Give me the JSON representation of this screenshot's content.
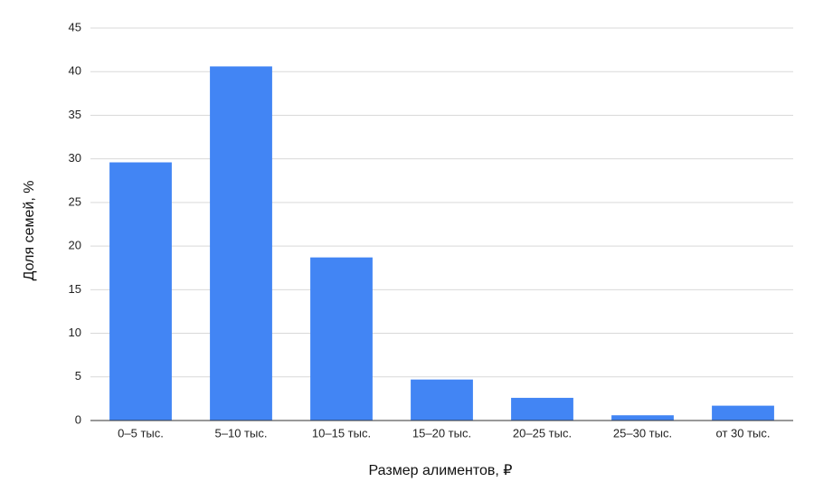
{
  "chart_data": {
    "type": "bar",
    "x_label": "Размер алиментов, ₽",
    "y_label": "Доля семей, %",
    "categories": [
      "0–5 тыс.",
      "5–10 тыс.",
      "10–15 тыс.",
      "15–20 тыс.",
      "20–25 тыс.",
      "25–30 тыс.",
      "от 30 тыс."
    ],
    "values": [
      29.6,
      40.6,
      18.7,
      4.7,
      2.6,
      0.6,
      1.7
    ],
    "color": "#4285f4",
    "ylim": [
      0,
      45
    ],
    "yticks": [
      0,
      5,
      10,
      15,
      20,
      25,
      30,
      35,
      40,
      45
    ],
    "grid": true
  }
}
